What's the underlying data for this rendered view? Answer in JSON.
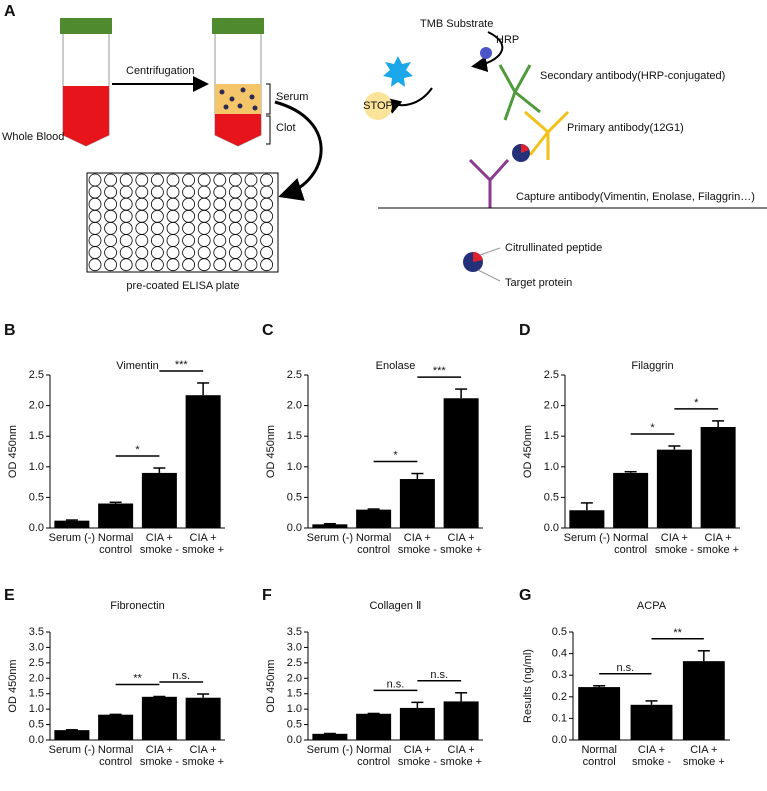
{
  "diagram": {
    "panel": "A",
    "whole_blood": "Whole Blood",
    "centrifugation": "Centrifugation",
    "serum": "Serum",
    "clot": "Clot",
    "plate": "pre-coated ELISA plate",
    "tmb": "TMB Substrate",
    "hrp": "HRP",
    "stop": "STOP",
    "secondary": "Secondary antibody(HRP-conjugated)",
    "primary": "Primary antibody(12G1)",
    "capture": "Capture antibody(Vimentin, Enolase, Filaggrin…)",
    "citrullinated": "Citrullinated peptide",
    "target": "Target protein"
  },
  "chart_data": [
    {
      "type": "bar",
      "panel": "B",
      "title": "Vimentin",
      "y_label": "OD 450nm",
      "categories": [
        "Serum (-)",
        "Normal\ncontrol",
        "CIA +\nsmoke -",
        "CIA +\nsmoke +"
      ],
      "values": [
        0.12,
        0.4,
        0.9,
        2.17
      ],
      "errors": [
        0.01,
        0.02,
        0.08,
        0.2
      ],
      "color": "#000000",
      "ylim": [
        0,
        2.5
      ],
      "yticks": [
        {
          "value": 0,
          "label": "0.0"
        },
        0.5,
        {
          "value": 1,
          "label": "1.0"
        },
        1.5,
        {
          "value": 2,
          "label": "2.0"
        },
        2.5
      ],
      "brackets": [
        {
          "between": [
            "Normal\ncontrol",
            "CIA +\nsmoke -"
          ],
          "label": "*"
        },
        {
          "between": [
            "CIA +\nsmoke -",
            "CIA +\nsmoke +"
          ],
          "label": "***"
        }
      ]
    },
    {
      "type": "bar",
      "panel": "C",
      "title": "Enolase",
      "y_label": "OD 450nm",
      "categories": [
        "Serum (-)",
        "Normal\ncontrol",
        "CIA +\nsmoke -",
        "CIA +\nsmoke +"
      ],
      "values": [
        0.06,
        0.3,
        0.8,
        2.12
      ],
      "errors": [
        0.01,
        0.01,
        0.09,
        0.15
      ],
      "color": "#000000",
      "ylim": [
        0,
        2.5
      ],
      "yticks": [
        {
          "value": 0,
          "label": "0.0"
        },
        0.5,
        {
          "value": 1,
          "label": "1.0"
        },
        1.5,
        {
          "value": 2,
          "label": "2.0"
        },
        2.5
      ],
      "brackets": [
        {
          "between": [
            "Normal\ncontrol",
            "CIA +\nsmoke -"
          ],
          "label": "*"
        },
        {
          "between": [
            "CIA +\nsmoke -",
            "CIA +\nsmoke +"
          ],
          "label": "***"
        }
      ]
    },
    {
      "type": "bar",
      "panel": "D",
      "title": "Filaggrin",
      "y_label": "OD 450nm",
      "categories": [
        "Serum (-)",
        "Normal\ncontrol",
        "CIA +\nsmoke -",
        "CIA +\nsmoke +"
      ],
      "values": [
        0.29,
        0.9,
        1.28,
        1.65
      ],
      "errors": [
        0.12,
        0.02,
        0.06,
        0.1
      ],
      "color": "#000000",
      "ylim": [
        0,
        2.5
      ],
      "yticks": [
        {
          "value": 0,
          "label": "0.0"
        },
        0.5,
        {
          "value": 1,
          "label": "1.0"
        },
        1.5,
        {
          "value": 2,
          "label": "2.0"
        },
        2.5
      ],
      "brackets": [
        {
          "between": [
            "Normal\ncontrol",
            "CIA +\nsmoke -"
          ],
          "label": "*"
        },
        {
          "between": [
            "CIA +\nsmoke -",
            "CIA +\nsmoke +"
          ],
          "label": "*"
        }
      ]
    },
    {
      "type": "bar",
      "panel": "E",
      "title": "Fibronectin",
      "y_label": "OD 450nm",
      "categories": [
        "Serum (-)",
        "Normal\ncontrol",
        "CIA +\nsmoke -",
        "CIA +\nsmoke +"
      ],
      "values": [
        0.32,
        0.82,
        1.4,
        1.37
      ],
      "errors": [
        0.01,
        0.01,
        0.01,
        0.12
      ],
      "color": "#000000",
      "ylim": [
        0,
        3.5
      ],
      "yticks": [
        {
          "value": 0,
          "label": "0.0"
        },
        0.5,
        {
          "value": 1,
          "label": "1.0"
        },
        1.5,
        {
          "value": 2,
          "label": "2.0"
        },
        2.5,
        {
          "value": 3,
          "label": "3.0"
        },
        3.5
      ],
      "brackets": [
        {
          "between": [
            "Normal\ncontrol",
            "CIA +\nsmoke -"
          ],
          "label": "**"
        },
        {
          "between": [
            "CIA +\nsmoke -",
            "CIA +\nsmoke +"
          ],
          "label": "n.s."
        }
      ]
    },
    {
      "type": "bar",
      "panel": "F",
      "title": "Collagen Ⅱ",
      "y_label": "OD 450nm",
      "categories": [
        "Serum (-)",
        "Normal\ncontrol",
        "CIA +\nsmoke -",
        "CIA +\nsmoke +"
      ],
      "values": [
        0.2,
        0.85,
        1.04,
        1.25
      ],
      "errors": [
        0.01,
        0.01,
        0.18,
        0.28
      ],
      "color": "#000000",
      "ylim": [
        0,
        3.5
      ],
      "yticks": [
        {
          "value": 0,
          "label": "0.0"
        },
        0.5,
        {
          "value": 1,
          "label": "1.0"
        },
        1.5,
        {
          "value": 2,
          "label": "2.0"
        },
        2.5,
        {
          "value": 3,
          "label": "3.0"
        },
        3.5
      ],
      "brackets": [
        {
          "between": [
            "Normal\ncontrol",
            "CIA +\nsmoke -"
          ],
          "label": "n.s."
        },
        {
          "between": [
            "CIA +\nsmoke -",
            "CIA +\nsmoke +"
          ],
          "label": "n.s."
        }
      ]
    },
    {
      "type": "bar",
      "panel": "G",
      "title": "ACPA",
      "y_label": "Results (ng/ml)",
      "categories": [
        "Normal\ncontrol",
        "CIA +\nsmoke -",
        "CIA +\nsmoke +"
      ],
      "values": [
        0.245,
        0.163,
        0.365
      ],
      "errors": [
        0.006,
        0.018,
        0.048
      ],
      "color": "#000000",
      "ylim": [
        0,
        0.5
      ],
      "yticks": [
        {
          "value": 0,
          "label": "0.0"
        },
        0.1,
        0.2,
        0.3,
        0.4,
        0.5
      ],
      "brackets": [
        {
          "between": [
            "Normal\ncontrol",
            "CIA +\nsmoke -"
          ],
          "label": "n.s."
        },
        {
          "between": [
            "CIA +\nsmoke -",
            "CIA +\nsmoke +"
          ],
          "label": "**"
        }
      ]
    }
  ]
}
